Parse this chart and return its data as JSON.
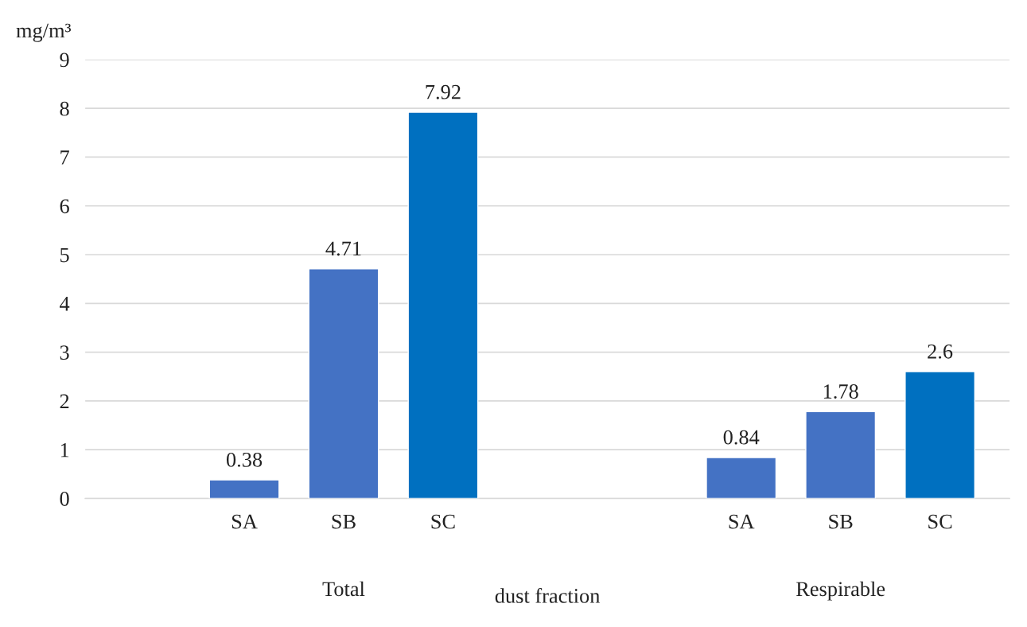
{
  "chart_data": {
    "type": "bar",
    "categories": [
      "SA",
      "SB",
      "SC",
      null,
      null,
      "SA",
      "SB",
      "SC"
    ],
    "values": [
      0.38,
      4.71,
      7.92,
      null,
      null,
      0.84,
      1.78,
      2.6
    ],
    "colors": [
      "#4472c4",
      "#4472c4",
      "#0070c0",
      null,
      null,
      "#4472c4",
      "#4472c4",
      "#0070c0"
    ],
    "ylabel": "mg/m³",
    "xlabel": "dust fraction",
    "annotations": [
      "Total",
      "Respirable"
    ],
    "ylim": [
      0,
      9
    ],
    "yticks": [
      0,
      1,
      2,
      3,
      4,
      5,
      6,
      7,
      8,
      9
    ],
    "grid": "y",
    "data_labels": true,
    "legend": false
  }
}
